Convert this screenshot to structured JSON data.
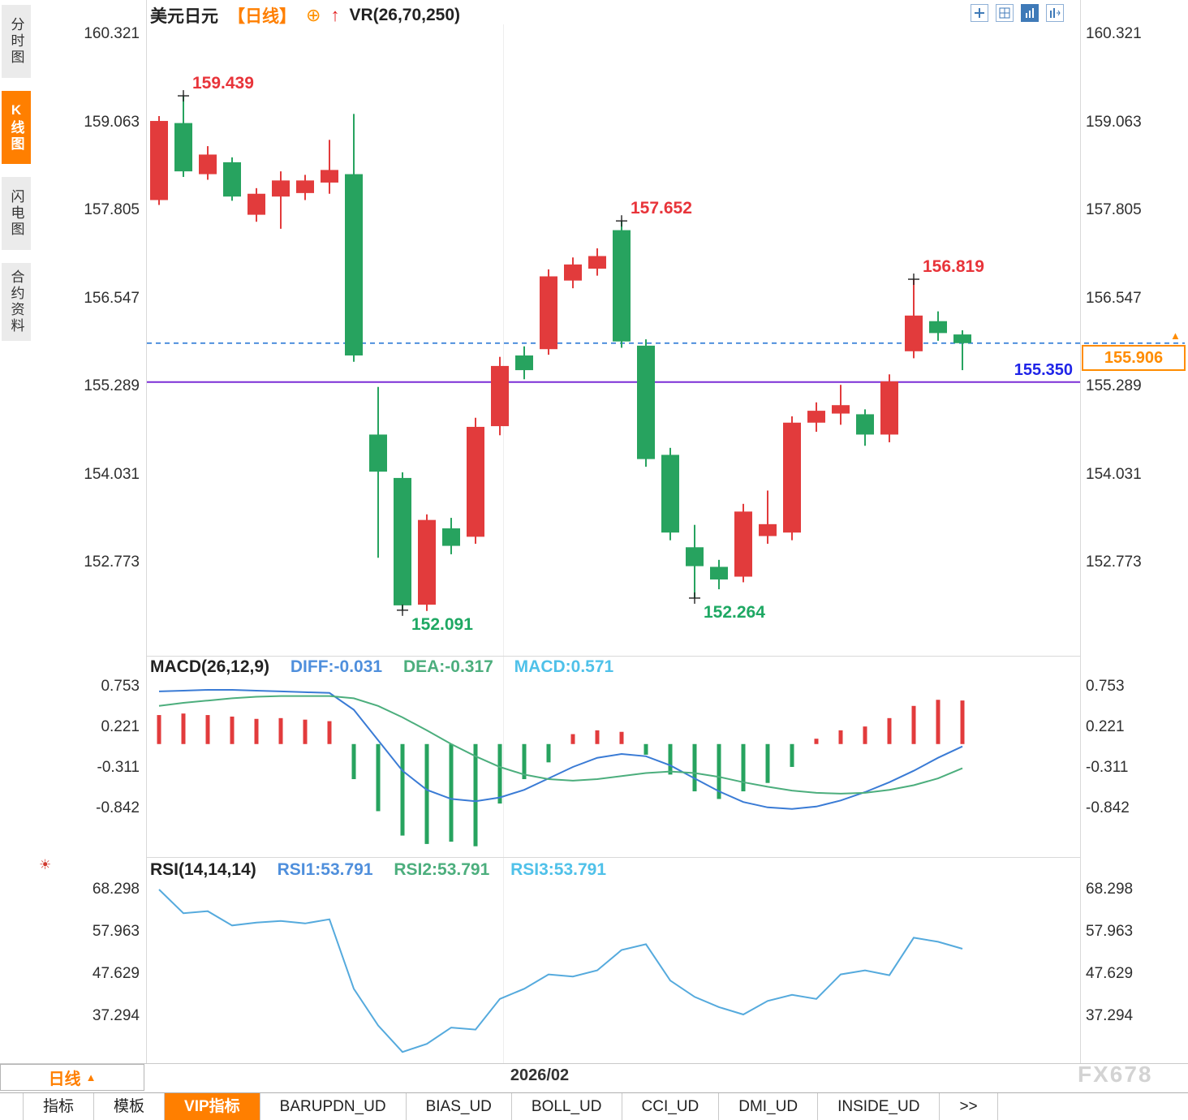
{
  "sidebar": {
    "tabs": [
      {
        "label": "分时图",
        "active": false
      },
      {
        "label": "K线图",
        "active": true
      },
      {
        "label": "闪电图",
        "active": false
      },
      {
        "label": "合约资料",
        "active": false
      }
    ]
  },
  "header": {
    "instrument": "美元日元",
    "period_tag": "【日线】",
    "vr_label": "VR(26,70,250)"
  },
  "icons": {
    "plus_circle": "⊕",
    "up_arrow": "↑",
    "triangle_up": "▲",
    "sun": "☀"
  },
  "toolbar": {
    "icons": [
      "pan-tool-icon",
      "grid-chart-icon",
      "bar-chart-icon",
      "panel-layout-icon"
    ]
  },
  "period_selector": {
    "label": "日线"
  },
  "x_axis": {
    "label": "2026/02"
  },
  "watermark": "FX678",
  "bottom_tabs": {
    "items": [
      "指标",
      "模板",
      "VIP指标",
      "BARUPDN_UD",
      "BIAS_UD",
      "BOLL_UD",
      "CCI_UD",
      "DMI_UD",
      "INSIDE_UD",
      ">>"
    ],
    "active": "VIP指标"
  },
  "colors": {
    "up": "#e23b3c",
    "down": "#27a35f",
    "purple_line": "#7b2ed6",
    "dashed_blue": "#2e7bd6",
    "diff_blue": "#3a7bd5",
    "dea_green": "#4cae7d",
    "rsi_line": "#55aadd",
    "accent_orange": "#ff7f00"
  },
  "chart_data": {
    "main": {
      "type": "candlestick",
      "title": "美元日元 日线",
      "y_ticks": [
        "160.321",
        "159.063",
        "157.805",
        "156.547",
        "155.289",
        "154.031",
        "152.773"
      ],
      "x_tick": "2026/02",
      "candles": [
        [
          157.95,
          159.15,
          157.88,
          159.08
        ],
        [
          159.05,
          159.439,
          158.28,
          158.36
        ],
        [
          158.32,
          158.72,
          158.24,
          158.6
        ],
        [
          158.49,
          158.56,
          157.94,
          158.0
        ],
        [
          157.74,
          158.12,
          157.64,
          158.04
        ],
        [
          158.0,
          158.36,
          157.54,
          158.23
        ],
        [
          158.05,
          158.31,
          157.95,
          158.23
        ],
        [
          158.2,
          158.81,
          158.04,
          158.38
        ],
        [
          158.32,
          159.18,
          155.64,
          155.73
        ],
        [
          154.6,
          155.28,
          152.84,
          154.07
        ],
        [
          153.98,
          154.06,
          152.091,
          152.16
        ],
        [
          152.17,
          153.46,
          152.08,
          153.38
        ],
        [
          153.26,
          153.41,
          152.89,
          153.01
        ],
        [
          153.14,
          154.84,
          153.04,
          154.71
        ],
        [
          154.72,
          155.71,
          154.59,
          155.58
        ],
        [
          155.73,
          155.86,
          155.39,
          155.52
        ],
        [
          155.82,
          156.96,
          155.74,
          156.86
        ],
        [
          156.8,
          157.13,
          156.69,
          157.03
        ],
        [
          156.97,
          157.26,
          156.87,
          157.15
        ],
        [
          157.52,
          157.652,
          155.84,
          155.93
        ],
        [
          155.87,
          155.96,
          154.14,
          154.25
        ],
        [
          154.31,
          154.41,
          153.09,
          153.2
        ],
        [
          152.99,
          153.31,
          152.264,
          152.72
        ],
        [
          152.71,
          152.81,
          152.39,
          152.53
        ],
        [
          152.57,
          153.61,
          152.49,
          153.5
        ],
        [
          153.15,
          153.8,
          153.04,
          153.32
        ],
        [
          153.2,
          154.86,
          153.09,
          154.77
        ],
        [
          154.77,
          155.06,
          154.64,
          154.94
        ],
        [
          154.9,
          155.31,
          154.74,
          155.02
        ],
        [
          154.89,
          154.96,
          154.44,
          154.6
        ],
        [
          154.6,
          155.46,
          154.49,
          155.36
        ],
        [
          155.79,
          156.819,
          155.69,
          156.3
        ],
        [
          156.22,
          156.36,
          155.94,
          156.05
        ],
        [
          156.03,
          156.09,
          155.52,
          155.906
        ]
      ],
      "annotations": [
        {
          "index": 1,
          "pos": "high",
          "label": "159.439",
          "color": "#e8343a"
        },
        {
          "index": 19,
          "pos": "high",
          "label": "157.652",
          "color": "#e8343a"
        },
        {
          "index": 31,
          "pos": "high",
          "label": "156.819",
          "color": "#e8343a"
        },
        {
          "index": 10,
          "pos": "low",
          "label": "152.091",
          "color": "#1ea863"
        },
        {
          "index": 22,
          "pos": "low",
          "label": "152.264",
          "color": "#1ea863"
        }
      ],
      "purple_line_value": 155.35,
      "purple_line_label": "155.350",
      "dashed_line_value": 155.906,
      "price_tag_label": "155.906"
    },
    "macd": {
      "type": "bar",
      "label": "MACD(26,12,9)",
      "diff_label": "DIFF:-0.031",
      "dea_label": "DEA:-0.317",
      "macd_label": "MACD:0.571",
      "y_ticks": [
        "0.753",
        "0.221",
        "-0.311",
        "-0.842"
      ],
      "histogram": [
        0.38,
        0.4,
        0.38,
        0.36,
        0.33,
        0.34,
        0.32,
        0.3,
        -0.46,
        -0.88,
        -1.2,
        -1.31,
        -1.28,
        -1.34,
        -0.78,
        -0.46,
        -0.24,
        0.13,
        0.18,
        0.16,
        -0.14,
        -0.4,
        -0.62,
        -0.72,
        -0.62,
        -0.51,
        -0.3,
        0.07,
        0.18,
        0.23,
        0.34,
        0.5,
        0.58,
        0.571
      ],
      "diff": [
        0.69,
        0.7,
        0.71,
        0.71,
        0.7,
        0.69,
        0.68,
        0.67,
        0.45,
        0.05,
        -0.35,
        -0.6,
        -0.72,
        -0.75,
        -0.7,
        -0.6,
        -0.45,
        -0.3,
        -0.18,
        -0.13,
        -0.16,
        -0.28,
        -0.45,
        -0.62,
        -0.76,
        -0.83,
        -0.85,
        -0.82,
        -0.74,
        -0.63,
        -0.5,
        -0.35,
        -0.18,
        -0.031
      ],
      "dea": [
        0.5,
        0.54,
        0.57,
        0.6,
        0.62,
        0.63,
        0.63,
        0.63,
        0.6,
        0.5,
        0.35,
        0.18,
        0.0,
        -0.16,
        -0.3,
        -0.4,
        -0.46,
        -0.48,
        -0.46,
        -0.42,
        -0.38,
        -0.36,
        -0.38,
        -0.43,
        -0.5,
        -0.56,
        -0.61,
        -0.64,
        -0.65,
        -0.64,
        -0.6,
        -0.54,
        -0.45,
        -0.317
      ]
    },
    "rsi": {
      "type": "line",
      "label": "RSI(14,14,14)",
      "rsi1_label": "RSI1:53.791",
      "rsi2_label": "RSI2:53.791",
      "rsi3_label": "RSI3:53.791",
      "y_ticks": [
        "68.298",
        "57.963",
        "47.629",
        "37.294"
      ],
      "values": [
        68.3,
        62.5,
        63.0,
        59.5,
        60.2,
        60.6,
        60.0,
        61.0,
        44.0,
        35.0,
        28.5,
        30.5,
        34.5,
        34.0,
        41.5,
        44.0,
        47.5,
        47.0,
        48.5,
        53.5,
        54.9,
        46.0,
        42.0,
        39.5,
        37.7,
        41.0,
        42.5,
        41.5,
        47.5,
        48.5,
        47.3,
        56.5,
        55.5,
        53.791
      ]
    }
  }
}
